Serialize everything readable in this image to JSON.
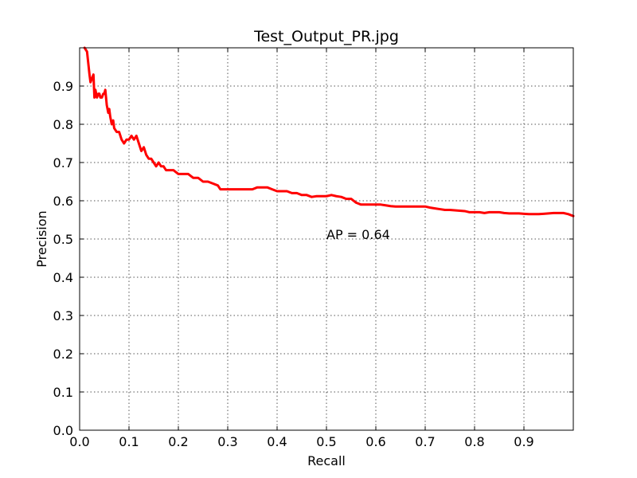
{
  "chart_data": {
    "type": "line",
    "title": "Test_Output_PR.jpg",
    "xlabel": "Recall",
    "ylabel": "Precision",
    "xlim": [
      0,
      1
    ],
    "ylim": [
      0,
      1
    ],
    "grid": true,
    "x_ticks": [
      "0.0",
      "0.1",
      "0.2",
      "0.3",
      "0.4",
      "0.5",
      "0.6",
      "0.7",
      "0.8",
      "0.9"
    ],
    "y_ticks": [
      "0.0",
      "0.1",
      "0.2",
      "0.3",
      "0.4",
      "0.5",
      "0.6",
      "0.7",
      "0.8",
      "0.9"
    ],
    "annotation": {
      "text": "AP = 0.64",
      "x": 0.5,
      "y": 0.5
    },
    "series": [
      {
        "color": "#ff0000",
        "x": [
          0.01,
          0.015,
          0.02,
          0.022,
          0.025,
          0.028,
          0.03,
          0.032,
          0.035,
          0.038,
          0.04,
          0.042,
          0.045,
          0.048,
          0.05,
          0.052,
          0.055,
          0.058,
          0.06,
          0.062,
          0.065,
          0.068,
          0.07,
          0.075,
          0.08,
          0.085,
          0.09,
          0.095,
          0.1,
          0.105,
          0.11,
          0.115,
          0.12,
          0.125,
          0.13,
          0.135,
          0.14,
          0.145,
          0.15,
          0.155,
          0.16,
          0.165,
          0.17,
          0.175,
          0.18,
          0.19,
          0.2,
          0.21,
          0.22,
          0.23,
          0.24,
          0.25,
          0.26,
          0.27,
          0.28,
          0.285,
          0.29,
          0.3,
          0.31,
          0.32,
          0.33,
          0.34,
          0.35,
          0.36,
          0.37,
          0.38,
          0.39,
          0.4,
          0.41,
          0.42,
          0.43,
          0.44,
          0.45,
          0.46,
          0.47,
          0.48,
          0.49,
          0.5,
          0.51,
          0.52,
          0.53,
          0.54,
          0.55,
          0.56,
          0.57,
          0.58,
          0.59,
          0.6,
          0.61,
          0.62,
          0.63,
          0.64,
          0.65,
          0.66,
          0.67,
          0.68,
          0.69,
          0.7,
          0.71,
          0.72,
          0.73,
          0.74,
          0.75,
          0.76,
          0.77,
          0.78,
          0.79,
          0.8,
          0.81,
          0.82,
          0.83,
          0.84,
          0.85,
          0.86,
          0.87,
          0.88,
          0.89,
          0.9,
          0.91,
          0.92,
          0.93,
          0.94,
          0.95,
          0.96,
          0.97,
          0.98,
          0.99,
          1.0
        ],
        "y": [
          1.0,
          0.99,
          0.93,
          0.91,
          0.92,
          0.93,
          0.87,
          0.89,
          0.87,
          0.88,
          0.88,
          0.87,
          0.87,
          0.88,
          0.88,
          0.89,
          0.85,
          0.83,
          0.84,
          0.82,
          0.8,
          0.81,
          0.79,
          0.78,
          0.78,
          0.76,
          0.75,
          0.76,
          0.76,
          0.77,
          0.76,
          0.77,
          0.75,
          0.73,
          0.74,
          0.72,
          0.71,
          0.71,
          0.7,
          0.69,
          0.7,
          0.69,
          0.69,
          0.68,
          0.68,
          0.68,
          0.67,
          0.67,
          0.67,
          0.66,
          0.66,
          0.65,
          0.65,
          0.645,
          0.64,
          0.63,
          0.63,
          0.63,
          0.63,
          0.63,
          0.63,
          0.63,
          0.63,
          0.635,
          0.635,
          0.635,
          0.63,
          0.625,
          0.625,
          0.625,
          0.62,
          0.62,
          0.615,
          0.615,
          0.61,
          0.612,
          0.612,
          0.612,
          0.615,
          0.612,
          0.61,
          0.605,
          0.605,
          0.595,
          0.59,
          0.59,
          0.59,
          0.59,
          0.59,
          0.588,
          0.586,
          0.585,
          0.585,
          0.585,
          0.585,
          0.585,
          0.585,
          0.585,
          0.582,
          0.58,
          0.578,
          0.576,
          0.576,
          0.575,
          0.574,
          0.573,
          0.57,
          0.57,
          0.57,
          0.568,
          0.57,
          0.57,
          0.57,
          0.568,
          0.567,
          0.567,
          0.567,
          0.566,
          0.565,
          0.565,
          0.565,
          0.566,
          0.567,
          0.568,
          0.568,
          0.568,
          0.565,
          0.56
        ]
      }
    ]
  }
}
